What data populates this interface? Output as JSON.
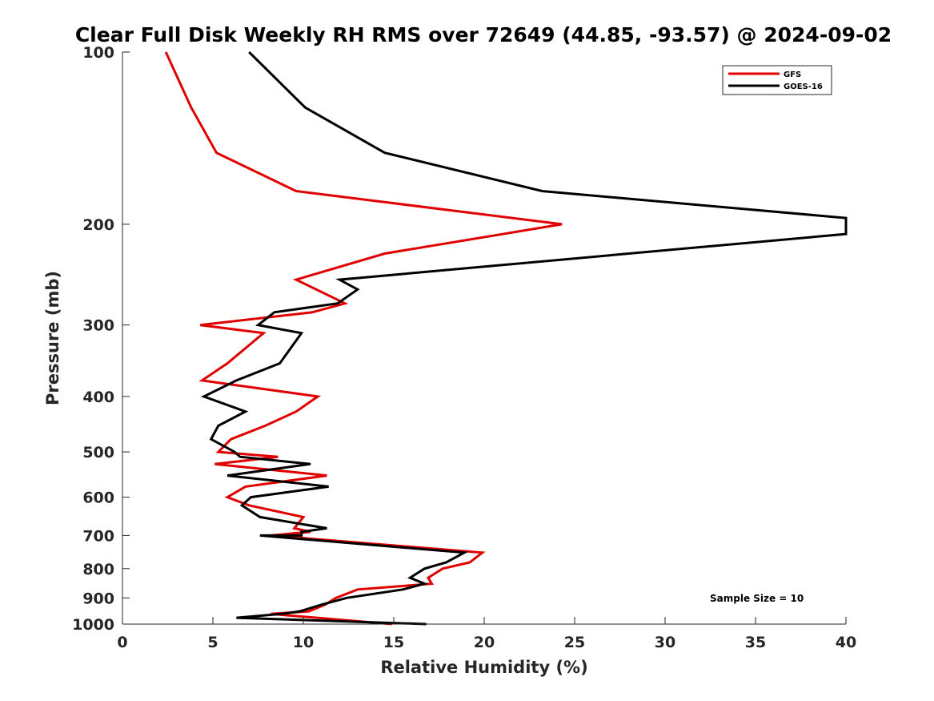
{
  "chart_data": {
    "type": "line",
    "title": "Clear Full Disk Weekly RH RMS over 72649 (44.85, -93.57) @ 2024-09-02",
    "xlabel": "Relative Humidity (%)",
    "ylabel": "Pressure (mb)",
    "xlim": [
      0,
      40
    ],
    "ylim": [
      100,
      1000
    ],
    "y_scale": "log",
    "y_reversed": true,
    "x_ticks": [
      0,
      5,
      10,
      15,
      20,
      25,
      30,
      35,
      40
    ],
    "y_ticks": [
      100,
      200,
      300,
      400,
      500,
      600,
      700,
      800,
      900,
      1000
    ],
    "grid": false,
    "legend_position": "top-right",
    "annotation": "Sample Size = 10",
    "series": [
      {
        "name": "GFS",
        "color": "#e00000",
        "points": [
          [
            2.4,
            100
          ],
          [
            3.8,
            125
          ],
          [
            5.2,
            150
          ],
          [
            9.6,
            175
          ],
          [
            24.3,
            200
          ],
          [
            14.5,
            225
          ],
          [
            9.6,
            250
          ],
          [
            12.3,
            275
          ],
          [
            10.5,
            285
          ],
          [
            4.3,
            300
          ],
          [
            7.8,
            310
          ],
          [
            5.8,
            350
          ],
          [
            4.4,
            375
          ],
          [
            10.8,
            400
          ],
          [
            9.6,
            425
          ],
          [
            7.9,
            450
          ],
          [
            6.0,
            475
          ],
          [
            5.3,
            500
          ],
          [
            8.6,
            510
          ],
          [
            5.1,
            525
          ],
          [
            11.3,
            550
          ],
          [
            6.8,
            575
          ],
          [
            5.8,
            600
          ],
          [
            7.0,
            620
          ],
          [
            10.0,
            650
          ],
          [
            9.5,
            680
          ],
          [
            10.4,
            690
          ],
          [
            8.2,
            700
          ],
          [
            19.9,
            750
          ],
          [
            19.2,
            780
          ],
          [
            17.7,
            800
          ],
          [
            16.9,
            830
          ],
          [
            17.1,
            850
          ],
          [
            13.0,
            870
          ],
          [
            11.8,
            900
          ],
          [
            11.2,
            925
          ],
          [
            10.3,
            950
          ],
          [
            8.2,
            960
          ],
          [
            14.9,
            1000
          ]
        ]
      },
      {
        "name": "GOES-16",
        "color": "#000000",
        "points": [
          [
            7.0,
            100
          ],
          [
            10.1,
            125
          ],
          [
            14.5,
            150
          ],
          [
            23.2,
            175
          ],
          [
            40.0,
            195
          ],
          [
            40.0,
            208
          ],
          [
            12.0,
            250
          ],
          [
            13.0,
            260
          ],
          [
            11.9,
            275
          ],
          [
            8.4,
            285
          ],
          [
            7.5,
            300
          ],
          [
            9.9,
            310
          ],
          [
            8.7,
            350
          ],
          [
            6.3,
            375
          ],
          [
            4.5,
            400
          ],
          [
            6.8,
            425
          ],
          [
            5.3,
            450
          ],
          [
            4.9,
            475
          ],
          [
            6.2,
            500
          ],
          [
            6.5,
            510
          ],
          [
            10.4,
            525
          ],
          [
            5.8,
            550
          ],
          [
            11.4,
            575
          ],
          [
            7.1,
            600
          ],
          [
            6.6,
            620
          ],
          [
            7.6,
            650
          ],
          [
            11.3,
            680
          ],
          [
            9.9,
            690
          ],
          [
            9.9,
            700
          ],
          [
            7.6,
            700
          ],
          [
            18.9,
            750
          ],
          [
            17.9,
            780
          ],
          [
            16.7,
            800
          ],
          [
            15.9,
            830
          ],
          [
            16.7,
            850
          ],
          [
            15.5,
            870
          ],
          [
            12.4,
            900
          ],
          [
            11.0,
            925
          ],
          [
            9.8,
            950
          ],
          [
            8.8,
            960
          ],
          [
            6.3,
            975
          ],
          [
            16.8,
            1000
          ]
        ]
      }
    ]
  }
}
